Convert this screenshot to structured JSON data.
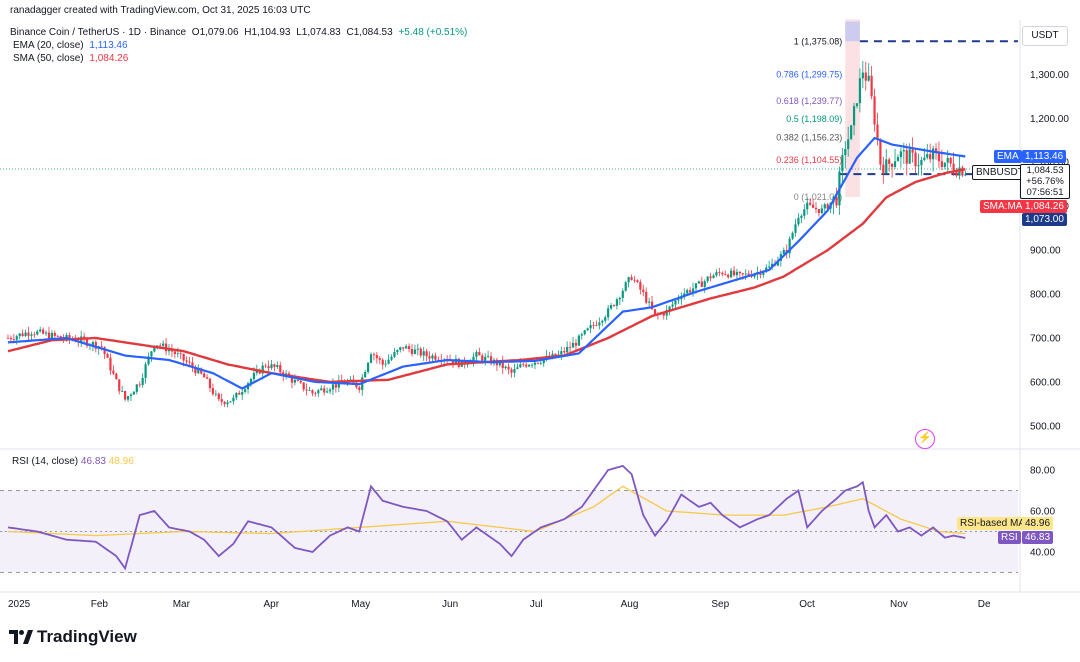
{
  "header": {
    "credit": "ranadagger created with TradingView.com, Oct 31, 2025 16:03 UTC",
    "symbol_line": "Binance Coin / TetherUS · 1D · Binance",
    "ohlc": {
      "o": "O1,079.06",
      "h": "H1,104.93",
      "l": "L1,074.83",
      "c": "C1,084.53",
      "chg": "+5.48 (+0.51%)"
    },
    "ema_label": "EMA (20, close)",
    "ema_value": "1,113.46",
    "sma_label": "SMA (50, close)",
    "sma_value": "1,084.26",
    "currency": "USDT"
  },
  "price_tags": {
    "ema": {
      "name": "EMA",
      "value": "1,113.46",
      "color": "#2962ff"
    },
    "sym": {
      "name": "BNBUSDT",
      "value": "1,084.53",
      "pct": "+56.76%",
      "countdown": "07:56:51",
      "color": "#131722"
    },
    "sma": {
      "name": "SMA:MA",
      "value": "1,084.26",
      "color": "#f23645"
    },
    "level": {
      "value": "1,073.00",
      "color": "#1e3a8a"
    }
  },
  "rsi": {
    "label": "RSI (14, close)",
    "value": "46.83",
    "ma_value": "48.96",
    "ma_tag": "RSI-based MA",
    "rsi_tag": "RSI",
    "ticks": [
      "80.00",
      "60.00",
      "40.00"
    ]
  },
  "fib": [
    {
      "level": "1",
      "price": "(1,375.08)"
    },
    {
      "level": "0.786",
      "price": "(1,299.75)"
    },
    {
      "level": "0.618",
      "price": "(1,239.77)"
    },
    {
      "level": "0.5",
      "price": "(1,198.09)"
    },
    {
      "level": "0.382",
      "price": "(1,156.23)"
    },
    {
      "level": "0.236",
      "price": "(1,104.55)"
    },
    {
      "level": "0",
      "price": "(1,021.00)"
    }
  ],
  "x_axis": [
    "2025",
    "Feb",
    "Mar",
    "Apr",
    "May",
    "Jun",
    "Jul",
    "Aug",
    "Sep",
    "Oct",
    "Nov",
    "De"
  ],
  "brand": "TradingView",
  "chart_data": {
    "type": "candlestick",
    "symbol": "BNBUSDT",
    "interval": "1D",
    "y_ticks": [
      1300,
      1200,
      1100,
      1000,
      900,
      800,
      700,
      600,
      500
    ],
    "y_tick_labels": [
      "1,300.00",
      "1,200.00",
      "1,100.00",
      "1,000.00",
      "900.00",
      "800.00",
      "700.00",
      "600.00",
      "500.00"
    ],
    "ylim": [
      470,
      1400
    ],
    "xlim_days": [
      0,
      345
    ],
    "month_ticks": [
      0,
      31,
      59,
      90,
      120,
      151,
      181,
      212,
      243,
      273,
      304,
      334
    ],
    "anchors": {
      "close": [
        [
          0,
          700
        ],
        [
          8,
          715
        ],
        [
          18,
          700
        ],
        [
          25,
          695
        ],
        [
          32,
          680
        ],
        [
          37,
          600
        ],
        [
          40,
          560
        ],
        [
          45,
          600
        ],
        [
          50,
          690
        ],
        [
          56,
          670
        ],
        [
          62,
          640
        ],
        [
          67,
          610
        ],
        [
          72,
          555
        ],
        [
          77,
          560
        ],
        [
          82,
          600
        ],
        [
          88,
          640
        ],
        [
          92,
          630
        ],
        [
          98,
          600
        ],
        [
          104,
          575
        ],
        [
          110,
          590
        ],
        [
          116,
          600
        ],
        [
          120,
          590
        ],
        [
          124,
          670
        ],
        [
          128,
          640
        ],
        [
          135,
          680
        ],
        [
          143,
          660
        ],
        [
          150,
          655
        ],
        [
          155,
          640
        ],
        [
          160,
          660
        ],
        [
          168,
          640
        ],
        [
          172,
          620
        ],
        [
          176,
          640
        ],
        [
          182,
          650
        ],
        [
          188,
          660
        ],
        [
          194,
          690
        ],
        [
          200,
          730
        ],
        [
          205,
          760
        ],
        [
          210,
          810
        ],
        [
          213,
          840
        ],
        [
          217,
          800
        ],
        [
          221,
          750
        ],
        [
          225,
          760
        ],
        [
          230,
          800
        ],
        [
          236,
          820
        ],
        [
          240,
          840
        ],
        [
          244,
          850
        ],
        [
          250,
          840
        ],
        [
          256,
          850
        ],
        [
          260,
          860
        ],
        [
          266,
          900
        ],
        [
          270,
          980
        ],
        [
          273,
          1000
        ],
        [
          278,
          990
        ],
        [
          283,
          1020
        ],
        [
          286,
          1140
        ],
        [
          288,
          1170
        ],
        [
          290,
          1250
        ],
        [
          292,
          1310
        ],
        [
          294,
          1280
        ],
        [
          296,
          1200
        ],
        [
          298,
          1100
        ],
        [
          300,
          1090
        ],
        [
          304,
          1120
        ],
        [
          308,
          1110
        ],
        [
          312,
          1100
        ],
        [
          316,
          1115
        ],
        [
          320,
          1100
        ],
        [
          323,
          1090
        ],
        [
          327,
          1084
        ]
      ],
      "ema20": [
        [
          0,
          690
        ],
        [
          20,
          700
        ],
        [
          40,
          660
        ],
        [
          55,
          650
        ],
        [
          70,
          620
        ],
        [
          80,
          585
        ],
        [
          90,
          620
        ],
        [
          105,
          600
        ],
        [
          120,
          595
        ],
        [
          135,
          635
        ],
        [
          150,
          650
        ],
        [
          165,
          645
        ],
        [
          180,
          648
        ],
        [
          195,
          665
        ],
        [
          210,
          760
        ],
        [
          220,
          770
        ],
        [
          235,
          805
        ],
        [
          250,
          835
        ],
        [
          260,
          855
        ],
        [
          270,
          920
        ],
        [
          280,
          990
        ],
        [
          290,
          1110
        ],
        [
          296,
          1155
        ],
        [
          302,
          1140
        ],
        [
          315,
          1125
        ],
        [
          327,
          1113
        ]
      ],
      "sma50": [
        [
          0,
          670
        ],
        [
          15,
          695
        ],
        [
          30,
          700
        ],
        [
          45,
          685
        ],
        [
          60,
          670
        ],
        [
          75,
          640
        ],
        [
          90,
          620
        ],
        [
          110,
          600
        ],
        [
          130,
          605
        ],
        [
          150,
          640
        ],
        [
          175,
          650
        ],
        [
          190,
          660
        ],
        [
          205,
          700
        ],
        [
          220,
          750
        ],
        [
          240,
          790
        ],
        [
          255,
          815
        ],
        [
          265,
          840
        ],
        [
          280,
          900
        ],
        [
          292,
          960
        ],
        [
          300,
          1020
        ],
        [
          310,
          1055
        ],
        [
          320,
          1075
        ],
        [
          327,
          1084
        ]
      ],
      "rsi14": [
        [
          0,
          52
        ],
        [
          10,
          50
        ],
        [
          20,
          46
        ],
        [
          30,
          45
        ],
        [
          37,
          38
        ],
        [
          40,
          32
        ],
        [
          45,
          58
        ],
        [
          50,
          60
        ],
        [
          55,
          52
        ],
        [
          62,
          50
        ],
        [
          67,
          46
        ],
        [
          72,
          38
        ],
        [
          77,
          44
        ],
        [
          82,
          55
        ],
        [
          90,
          52
        ],
        [
          98,
          42
        ],
        [
          104,
          40
        ],
        [
          110,
          48
        ],
        [
          116,
          52
        ],
        [
          120,
          50
        ],
        [
          124,
          72
        ],
        [
          128,
          65
        ],
        [
          135,
          62
        ],
        [
          143,
          60
        ],
        [
          150,
          55
        ],
        [
          155,
          46
        ],
        [
          160,
          52
        ],
        [
          168,
          44
        ],
        [
          172,
          38
        ],
        [
          176,
          46
        ],
        [
          182,
          52
        ],
        [
          190,
          56
        ],
        [
          196,
          62
        ],
        [
          200,
          70
        ],
        [
          205,
          80
        ],
        [
          210,
          82
        ],
        [
          213,
          78
        ],
        [
          217,
          58
        ],
        [
          221,
          48
        ],
        [
          225,
          55
        ],
        [
          230,
          68
        ],
        [
          236,
          62
        ],
        [
          240,
          64
        ],
        [
          244,
          58
        ],
        [
          250,
          52
        ],
        [
          256,
          56
        ],
        [
          260,
          58
        ],
        [
          266,
          66
        ],
        [
          270,
          70
        ],
        [
          273,
          52
        ],
        [
          278,
          60
        ],
        [
          283,
          66
        ],
        [
          286,
          70
        ],
        [
          290,
          72
        ],
        [
          292,
          74
        ],
        [
          294,
          60
        ],
        [
          296,
          52
        ],
        [
          300,
          58
        ],
        [
          304,
          50
        ],
        [
          308,
          52
        ],
        [
          312,
          48
        ],
        [
          316,
          52
        ],
        [
          320,
          47
        ],
        [
          323,
          48
        ],
        [
          327,
          46.83
        ]
      ],
      "rsi_ma": [
        [
          0,
          50
        ],
        [
          30,
          48
        ],
        [
          60,
          50
        ],
        [
          90,
          49
        ],
        [
          120,
          52
        ],
        [
          150,
          55
        ],
        [
          180,
          50
        ],
        [
          200,
          62
        ],
        [
          210,
          72
        ],
        [
          225,
          60
        ],
        [
          245,
          58
        ],
        [
          265,
          58
        ],
        [
          280,
          62
        ],
        [
          292,
          66
        ],
        [
          305,
          56
        ],
        [
          318,
          50
        ],
        [
          327,
          48.96
        ]
      ]
    },
    "rsi_band": [
      30,
      70
    ],
    "fib_range": [
      1021.0,
      1375.08
    ],
    "support_level": 1073.0
  }
}
